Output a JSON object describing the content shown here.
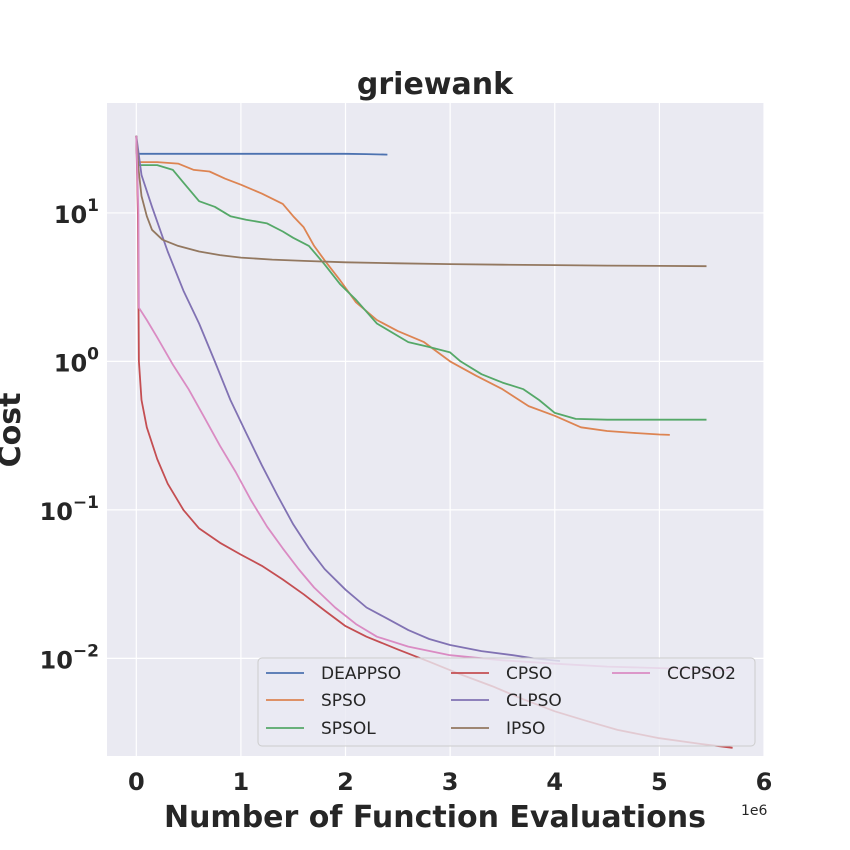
{
  "chart_data": {
    "type": "line",
    "title": "griewank",
    "xlabel": "Number of Function Evaluations",
    "ylabel": "Cost",
    "x_offset_label": "1e6",
    "xscale": "linear",
    "yscale": "log",
    "xlim": [
      -0.28,
      6.0
    ],
    "ylim": [
      0.0022,
      55
    ],
    "x_ticks": [
      0,
      1,
      2,
      3,
      4,
      5,
      6
    ],
    "y_ticks": [
      {
        "value": 0.01,
        "base": "10",
        "exp": "−2"
      },
      {
        "value": 0.1,
        "base": "10",
        "exp": "−1"
      },
      {
        "value": 1,
        "base": "10",
        "exp": "0"
      },
      {
        "value": 10,
        "base": "10",
        "exp": "1"
      }
    ],
    "grid": true,
    "legend_position": "lower-right",
    "legend_columns": 3,
    "series": [
      {
        "name": "DEAPPSO",
        "color": "#4c72b0",
        "points": [
          [
            0.0,
            33
          ],
          [
            0.005,
            25
          ],
          [
            0.5,
            25
          ],
          [
            1.0,
            25
          ],
          [
            1.5,
            25
          ],
          [
            2.0,
            25
          ],
          [
            2.2,
            24.9
          ],
          [
            2.4,
            24.7
          ]
        ]
      },
      {
        "name": "SPSO",
        "color": "#dd8452",
        "points": [
          [
            0.0,
            33
          ],
          [
            0.01,
            22
          ],
          [
            0.2,
            22
          ],
          [
            0.4,
            21.5
          ],
          [
            0.55,
            19.5
          ],
          [
            0.7,
            19
          ],
          [
            0.85,
            17
          ],
          [
            1.0,
            15.5
          ],
          [
            1.2,
            13.5
          ],
          [
            1.4,
            11.5
          ],
          [
            1.5,
            9.5
          ],
          [
            1.6,
            8
          ],
          [
            1.7,
            6
          ],
          [
            1.8,
            4.8
          ],
          [
            1.95,
            3.5
          ],
          [
            2.1,
            2.5
          ],
          [
            2.3,
            1.9
          ],
          [
            2.5,
            1.6
          ],
          [
            2.75,
            1.35
          ],
          [
            3.0,
            1.0
          ],
          [
            3.25,
            0.8
          ],
          [
            3.5,
            0.65
          ],
          [
            3.75,
            0.5
          ],
          [
            4.0,
            0.43
          ],
          [
            4.25,
            0.36
          ],
          [
            4.5,
            0.34
          ],
          [
            4.75,
            0.33
          ],
          [
            5.0,
            0.322
          ],
          [
            5.1,
            0.32
          ]
        ]
      },
      {
        "name": "SPSOL",
        "color": "#55a868",
        "points": [
          [
            0.0,
            33
          ],
          [
            0.01,
            21
          ],
          [
            0.2,
            21
          ],
          [
            0.35,
            19.5
          ],
          [
            0.45,
            16
          ],
          [
            0.6,
            12
          ],
          [
            0.75,
            11
          ],
          [
            0.9,
            9.5
          ],
          [
            1.05,
            9
          ],
          [
            1.25,
            8.5
          ],
          [
            1.4,
            7.5
          ],
          [
            1.5,
            6.8
          ],
          [
            1.65,
            6
          ],
          [
            1.8,
            4.5
          ],
          [
            1.95,
            3.3
          ],
          [
            2.1,
            2.6
          ],
          [
            2.3,
            1.8
          ],
          [
            2.6,
            1.35
          ],
          [
            2.8,
            1.25
          ],
          [
            3.0,
            1.15
          ],
          [
            3.1,
            1.0
          ],
          [
            3.3,
            0.82
          ],
          [
            3.5,
            0.72
          ],
          [
            3.7,
            0.65
          ],
          [
            3.85,
            0.55
          ],
          [
            4.0,
            0.45
          ],
          [
            4.2,
            0.41
          ],
          [
            4.5,
            0.405
          ],
          [
            5.0,
            0.405
          ],
          [
            5.45,
            0.405
          ]
        ]
      },
      {
        "name": "CPSO",
        "color": "#c44e52",
        "points": [
          [
            0.0,
            33
          ],
          [
            0.015,
            10
          ],
          [
            0.025,
            1.0
          ],
          [
            0.05,
            0.55
          ],
          [
            0.1,
            0.36
          ],
          [
            0.2,
            0.22
          ],
          [
            0.3,
            0.15
          ],
          [
            0.45,
            0.1
          ],
          [
            0.6,
            0.075
          ],
          [
            0.8,
            0.06
          ],
          [
            1.0,
            0.05
          ],
          [
            1.2,
            0.042
          ],
          [
            1.4,
            0.034
          ],
          [
            1.6,
            0.027
          ],
          [
            1.8,
            0.021
          ],
          [
            2.0,
            0.0165
          ],
          [
            2.2,
            0.014
          ],
          [
            2.5,
            0.0115
          ],
          [
            2.8,
            0.0095
          ],
          [
            3.1,
            0.0078
          ],
          [
            3.4,
            0.0065
          ],
          [
            3.7,
            0.0053
          ],
          [
            4.0,
            0.0044
          ],
          [
            4.3,
            0.0038
          ],
          [
            4.6,
            0.0033
          ],
          [
            5.0,
            0.0029
          ],
          [
            5.4,
            0.00265
          ],
          [
            5.7,
            0.0025
          ]
        ]
      },
      {
        "name": "CLPSO",
        "color": "#8172b3",
        "points": [
          [
            0.0,
            33
          ],
          [
            0.05,
            18
          ],
          [
            0.15,
            11
          ],
          [
            0.3,
            5.5
          ],
          [
            0.45,
            3.0
          ],
          [
            0.6,
            1.8
          ],
          [
            0.75,
            1.0
          ],
          [
            0.9,
            0.55
          ],
          [
            1.05,
            0.33
          ],
          [
            1.2,
            0.2
          ],
          [
            1.35,
            0.125
          ],
          [
            1.5,
            0.08
          ],
          [
            1.65,
            0.055
          ],
          [
            1.8,
            0.04
          ],
          [
            2.0,
            0.029
          ],
          [
            2.2,
            0.022
          ],
          [
            2.4,
            0.0185
          ],
          [
            2.6,
            0.0155
          ],
          [
            2.8,
            0.0135
          ],
          [
            3.0,
            0.0123
          ],
          [
            3.3,
            0.0112
          ],
          [
            3.6,
            0.0105
          ],
          [
            3.8,
            0.01
          ],
          [
            4.05,
            0.0096
          ]
        ]
      },
      {
        "name": "IPSO",
        "color": "#937860",
        "points": [
          [
            0.0,
            33
          ],
          [
            0.02,
            20
          ],
          [
            0.05,
            13
          ],
          [
            0.1,
            9.5
          ],
          [
            0.15,
            7.7
          ],
          [
            0.25,
            6.6
          ],
          [
            0.4,
            6.0
          ],
          [
            0.6,
            5.5
          ],
          [
            0.8,
            5.2
          ],
          [
            1.0,
            5.0
          ],
          [
            1.3,
            4.85
          ],
          [
            1.6,
            4.75
          ],
          [
            2.0,
            4.65
          ],
          [
            2.5,
            4.58
          ],
          [
            3.0,
            4.52
          ],
          [
            3.5,
            4.48
          ],
          [
            4.0,
            4.45
          ],
          [
            4.5,
            4.42
          ],
          [
            5.0,
            4.4
          ],
          [
            5.45,
            4.38
          ]
        ]
      },
      {
        "name": "CCPSO2",
        "color": "#da8bc3",
        "points": [
          [
            0.0,
            33
          ],
          [
            0.02,
            10
          ],
          [
            0.025,
            2.3
          ],
          [
            0.1,
            1.9
          ],
          [
            0.2,
            1.45
          ],
          [
            0.35,
            0.95
          ],
          [
            0.5,
            0.65
          ],
          [
            0.65,
            0.42
          ],
          [
            0.8,
            0.27
          ],
          [
            0.95,
            0.18
          ],
          [
            1.1,
            0.115
          ],
          [
            1.25,
            0.077
          ],
          [
            1.4,
            0.055
          ],
          [
            1.55,
            0.04
          ],
          [
            1.7,
            0.03
          ],
          [
            1.9,
            0.022
          ],
          [
            2.1,
            0.017
          ],
          [
            2.3,
            0.014
          ],
          [
            2.6,
            0.012
          ],
          [
            3.0,
            0.0105
          ],
          [
            3.5,
            0.0097
          ],
          [
            4.0,
            0.0092
          ],
          [
            4.5,
            0.0088
          ],
          [
            5.0,
            0.0086
          ],
          [
            5.5,
            0.0084
          ],
          [
            5.7,
            0.0083
          ]
        ]
      }
    ]
  }
}
